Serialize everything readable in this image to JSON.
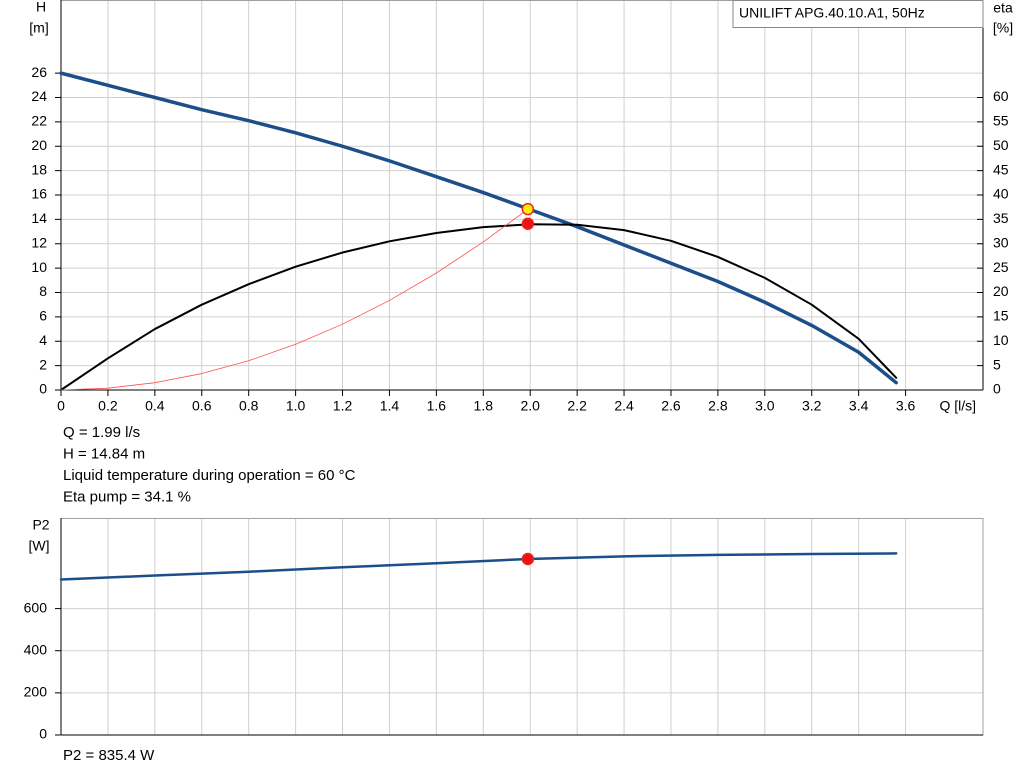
{
  "chart_data": [
    {
      "type": "line",
      "title": "UNILIFT APG.40.10.A1, 50Hz",
      "y_label": "H",
      "y_unit": "[m]",
      "y2_label": "eta",
      "y2_unit": "[%]",
      "x_label": "Q [l/s]",
      "xlim": [
        0,
        3.93
      ],
      "ylim": [
        0,
        32
      ],
      "y2lim": [
        0,
        80
      ],
      "xticks": [
        0,
        0.2,
        0.4,
        0.6,
        0.8,
        {
          "value": 1,
          "label": "1.0"
        },
        1.2,
        1.4,
        1.6,
        1.8,
        {
          "value": 2,
          "label": "2.0"
        },
        2.2,
        2.4,
        2.6,
        2.8,
        {
          "value": 3,
          "label": "3.0"
        },
        3.2,
        3.4,
        3.6
      ],
      "yticks": [
        0,
        2,
        4,
        6,
        8,
        10,
        12,
        14,
        16,
        18,
        20,
        22,
        24,
        26
      ],
      "y2ticks": [
        0,
        5,
        10,
        15,
        20,
        25,
        30,
        35,
        40,
        45,
        50,
        55,
        60
      ],
      "grid": true,
      "series": [
        {
          "color": "#1b4f8a",
          "width": 3.5,
          "x": [
            0,
            0.2,
            0.4,
            0.6,
            0.8,
            1,
            1.2,
            1.4,
            1.6,
            1.8,
            2,
            2.2,
            2.4,
            2.6,
            2.8,
            3,
            3.2,
            3.4,
            3.56
          ],
          "values": [
            26,
            25,
            24,
            23,
            22.1,
            21.1,
            20,
            18.8,
            17.5,
            16.2,
            14.8,
            13.4,
            11.9,
            10.4,
            8.9,
            7.2,
            5.3,
            3.1,
            0.6
          ]
        },
        {
          "color": "#000000",
          "width": 2,
          "axis": "y2",
          "x": [
            0,
            0.2,
            0.4,
            0.6,
            0.8,
            1,
            1.2,
            1.4,
            1.6,
            1.8,
            2,
            2.2,
            2.4,
            2.6,
            2.8,
            3,
            3.2,
            3.4,
            3.56
          ],
          "values": [
            0,
            6.5,
            12.5,
            17.5,
            21.7,
            25.3,
            28.2,
            30.5,
            32.2,
            33.4,
            34,
            33.9,
            32.8,
            30.6,
            27.3,
            23,
            17.5,
            10.5,
            2.5
          ]
        },
        {
          "color": "#ff5050",
          "width": 0.8,
          "x": [
            0,
            0.2,
            0.4,
            0.6,
            0.8,
            1,
            1.2,
            1.4,
            1.6,
            1.8,
            1.99
          ],
          "values": [
            0,
            0.15,
            0.6,
            1.35,
            2.4,
            3.75,
            5.4,
            7.35,
            9.6,
            12.15,
            14.84
          ]
        }
      ],
      "markers": [
        {
          "x": 1.99,
          "y": 34.1,
          "axis": "y2",
          "color": "#ee1111"
        },
        {
          "x": 1.99,
          "y": 14.84,
          "color": "#ffee00"
        }
      ],
      "annotations": [
        "Q = 1.99 l/s",
        "H = 14.84 m",
        "Liquid temperature during operation = 60 °C",
        "Eta pump = 34.1 %"
      ]
    },
    {
      "type": "line",
      "y_label": "P2",
      "y_unit": "[W]",
      "xlim": [
        0,
        3.93
      ],
      "ylim": [
        0,
        1030
      ],
      "yticks": [
        0,
        200,
        400,
        600
      ],
      "grid": true,
      "series": [
        {
          "color": "#1b4f8a",
          "width": 2.5,
          "x": [
            0,
            0.4,
            0.8,
            1.2,
            1.6,
            1.99,
            2.4,
            2.8,
            3.2,
            3.56
          ],
          "values": [
            738,
            757,
            775,
            796,
            815,
            835.4,
            848,
            855,
            859,
            862
          ]
        }
      ],
      "markers": [
        {
          "x": 1.99,
          "y": 835.4,
          "color": "#ee1111"
        }
      ],
      "annotations": [
        "P2 = 835.4 W"
      ]
    }
  ]
}
